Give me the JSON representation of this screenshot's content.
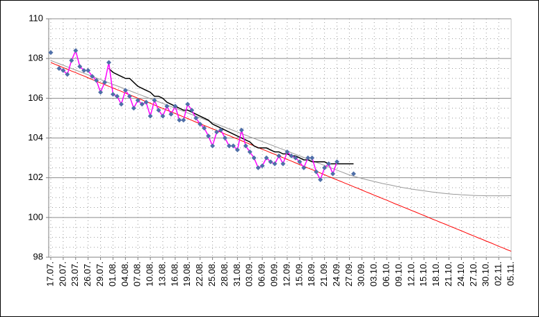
{
  "chart_data": {
    "type": "line",
    "categories": [
      "17.07.",
      null,
      null,
      "20.07.",
      null,
      null,
      "23.07.",
      null,
      null,
      "26.07.",
      null,
      null,
      "29.07.",
      null,
      null,
      "01.08.",
      null,
      null,
      "04.08.",
      null,
      null,
      "07.08.",
      null,
      null,
      "10.08.",
      null,
      null,
      "13.08.",
      null,
      null,
      "16.08.",
      null,
      null,
      "19.08.",
      null,
      null,
      "22.08.",
      null,
      null,
      "25.08.",
      null,
      null,
      "28.08.",
      null,
      null,
      "31.08.",
      null,
      null,
      "03.09.",
      null,
      null,
      "06.09.",
      null,
      null,
      "09.09.",
      null,
      null,
      "12.09.",
      null,
      null,
      "15.09.",
      null,
      null,
      "18.09.",
      null,
      null,
      "21.09.",
      null,
      null,
      "24.09.",
      null,
      null,
      "27.09.",
      null,
      null,
      "30.09.",
      null,
      null,
      "03.10.",
      null,
      null,
      "06.10.",
      null,
      null,
      "09.10.",
      null,
      null,
      "12.10.",
      null,
      null,
      "15.10.",
      null,
      null,
      "18.10.",
      null,
      null,
      "21.10.",
      null,
      null,
      "24.10.",
      null,
      null,
      "27.10.",
      null,
      null,
      "30.10.",
      null,
      null,
      "02.11.",
      null,
      null,
      "05.11."
    ],
    "series": [
      {
        "color": "#999999",
        "values": [
          107.9,
          107.82,
          107.74,
          107.66,
          107.58,
          107.5,
          107.42,
          107.34,
          107.26,
          107.18,
          107.1,
          107.02,
          106.94,
          106.86,
          106.78,
          106.7,
          106.62,
          106.54,
          106.46,
          106.38,
          106.3,
          106.22,
          106.14,
          106.06,
          105.98,
          105.9,
          105.82,
          105.74,
          105.66,
          105.58,
          105.5,
          105.42,
          105.34,
          105.26,
          105.18,
          105.1,
          105.02,
          104.94,
          104.86,
          104.78,
          104.7,
          104.62,
          104.54,
          104.46,
          104.38,
          104.3,
          104.22,
          104.14,
          104.06,
          103.98,
          103.9,
          103.82,
          103.74,
          103.66,
          103.58,
          103.5,
          103.42,
          103.34,
          103.26,
          103.18,
          103.1,
          103.02,
          102.94,
          102.86,
          102.78,
          102.7,
          102.62,
          102.54,
          102.46,
          102.38,
          102.3,
          102.22,
          102.14,
          102.08,
          102.02,
          101.97,
          101.91,
          101.86,
          101.81,
          101.76,
          101.71,
          101.67,
          101.63,
          101.58,
          101.54,
          101.5,
          101.47,
          101.43,
          101.4,
          101.37,
          101.34,
          101.31,
          101.28,
          101.26,
          101.23,
          101.21,
          101.19,
          101.17,
          101.16,
          101.14,
          101.13,
          101.12,
          101.11,
          101.1,
          101.1,
          101.09,
          101.09,
          101.09,
          101.09,
          101.09,
          101.09,
          101.1
        ]
      },
      {
        "color": "#ff0000",
        "values": [
          107.8,
          107.71,
          107.63,
          107.54,
          107.46,
          107.37,
          107.29,
          107.2,
          107.12,
          107.03,
          106.94,
          106.86,
          106.77,
          106.69,
          106.6,
          106.52,
          106.43,
          106.35,
          106.26,
          106.17,
          106.09,
          106.0,
          105.92,
          105.83,
          105.75,
          105.66,
          105.57,
          105.49,
          105.4,
          105.32,
          105.23,
          105.15,
          105.06,
          104.98,
          104.89,
          104.8,
          104.72,
          104.63,
          104.55,
          104.46,
          104.38,
          104.29,
          104.2,
          104.12,
          104.03,
          103.95,
          103.86,
          103.78,
          103.69,
          103.61,
          103.52,
          103.43,
          103.35,
          103.26,
          103.18,
          103.09,
          103.01,
          102.92,
          102.84,
          102.75,
          102.66,
          102.58,
          102.49,
          102.41,
          102.32,
          102.24,
          102.15,
          102.06,
          101.98,
          101.89,
          101.81,
          101.72,
          101.64,
          101.55,
          101.47,
          101.38,
          101.29,
          101.21,
          101.12,
          101.04,
          100.95,
          100.87,
          100.78,
          100.69,
          100.61,
          100.52,
          100.44,
          100.35,
          100.27,
          100.18,
          100.1,
          100.01,
          99.92,
          99.84,
          99.75,
          99.67,
          99.58,
          99.5,
          99.41,
          99.33,
          99.24,
          99.15,
          99.07,
          98.98,
          98.9,
          98.81,
          98.73,
          98.64,
          98.55,
          98.47,
          98.38,
          98.3
        ]
      },
      {
        "color": "#000000",
        "values": [
          null,
          null,
          null,
          null,
          null,
          null,
          null,
          null,
          null,
          null,
          null,
          null,
          null,
          null,
          107.5,
          107.3,
          107.2,
          107.1,
          107.0,
          107.0,
          106.8,
          106.6,
          106.5,
          106.4,
          106.3,
          106.1,
          106.1,
          106.0,
          105.8,
          105.7,
          105.6,
          105.5,
          105.4,
          105.4,
          105.3,
          105.2,
          105.1,
          105.0,
          104.9,
          104.7,
          104.6,
          104.5,
          104.4,
          104.3,
          104.2,
          104.1,
          104.0,
          103.9,
          103.8,
          103.6,
          103.5,
          103.5,
          103.5,
          103.4,
          103.3,
          103.3,
          103.2,
          103.2,
          103.1,
          103.1,
          103.0,
          102.9,
          102.9,
          102.8,
          102.8,
          102.8,
          102.8,
          102.7,
          102.7,
          102.7,
          102.7,
          102.7,
          102.7,
          102.7,
          null,
          null,
          null,
          null,
          null,
          null,
          null,
          null,
          null,
          null,
          null,
          null,
          null,
          null,
          null,
          null,
          null,
          null,
          null,
          null,
          null,
          null,
          null,
          null,
          null,
          null,
          null,
          null,
          null,
          null,
          null,
          null,
          null,
          null,
          null,
          null,
          null,
          null
        ]
      },
      {
        "color": "#4f6fa8",
        "line_color": "#ff00ff",
        "marker": "diamond",
        "values": [
          108.3,
          null,
          107.5,
          107.4,
          107.2,
          107.9,
          108.4,
          107.6,
          107.4,
          107.4,
          107.1,
          106.9,
          106.3,
          106.8,
          107.8,
          106.2,
          106.1,
          105.7,
          106.4,
          106.1,
          105.5,
          105.9,
          105.7,
          105.8,
          105.1,
          105.9,
          105.4,
          105.1,
          105.6,
          105.2,
          105.6,
          104.9,
          104.9,
          105.7,
          105.4,
          105.0,
          104.7,
          104.5,
          104.1,
          103.6,
          104.3,
          104.4,
          104.0,
          103.6,
          103.6,
          103.4,
          104.4,
          103.6,
          103.3,
          103.0,
          102.5,
          102.6,
          103.0,
          102.8,
          102.7,
          103.1,
          102.7,
          103.3,
          103.1,
          103.0,
          102.8,
          102.5,
          103.0,
          103.0,
          102.3,
          101.9,
          102.5,
          102.7,
          102.2,
          102.8,
          null,
          null,
          null,
          102.2,
          null,
          null,
          null,
          null,
          null,
          null,
          null,
          null,
          null,
          null,
          null,
          null,
          null,
          null,
          null,
          null,
          null,
          null,
          null,
          null,
          null,
          null,
          null,
          null,
          null,
          null,
          null,
          null,
          null,
          null,
          null,
          null,
          null,
          null,
          null,
          null,
          null,
          null
        ]
      }
    ],
    "ylim": [
      98,
      110
    ],
    "yticks": [
      98,
      100,
      102,
      104,
      106,
      108,
      110
    ],
    "grid": true
  }
}
